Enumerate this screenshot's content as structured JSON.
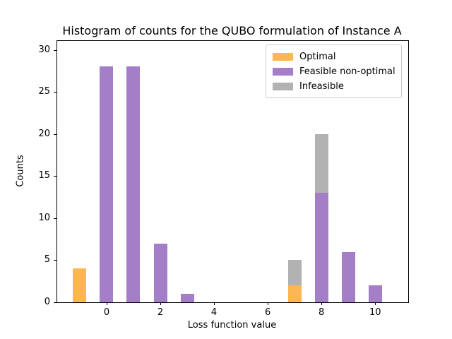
{
  "figure": {
    "background": "#ffffff",
    "spine_color": "#000000",
    "legend_border_color": "#cccccc"
  },
  "chart_data": {
    "type": "bar",
    "stacked": true,
    "title": "Histogram of counts for the QUBO formulation of Instance A",
    "xlabel": "Loss function value",
    "ylabel": "Counts",
    "x": [
      -1,
      0,
      1,
      2,
      3,
      7,
      8,
      9,
      10
    ],
    "series": [
      {
        "name": "Optimal",
        "color": "#fdb750",
        "values": [
          4,
          0,
          0,
          0,
          0,
          2,
          0,
          0,
          0
        ]
      },
      {
        "name": "Feasible non-optimal",
        "color": "#a47ec7",
        "values": [
          0,
          28,
          28,
          7,
          1,
          0,
          13,
          6,
          2
        ]
      },
      {
        "name": "Infeasible",
        "color": "#b2b2b2",
        "values": [
          0,
          0,
          0,
          0,
          0,
          3,
          7,
          0,
          0
        ]
      }
    ],
    "bar_width": 0.5,
    "xticks": [
      0,
      2,
      4,
      6,
      8,
      10
    ],
    "yticks": [
      0,
      5,
      10,
      15,
      20,
      25,
      30
    ],
    "xlim": [
      -1.84,
      11.23
    ],
    "ylim": [
      0,
      31.06
    ],
    "grid": false,
    "legend": {
      "position": "upper right",
      "entries": [
        "Optimal",
        "Feasible non-optimal",
        "Infeasible"
      ]
    }
  }
}
